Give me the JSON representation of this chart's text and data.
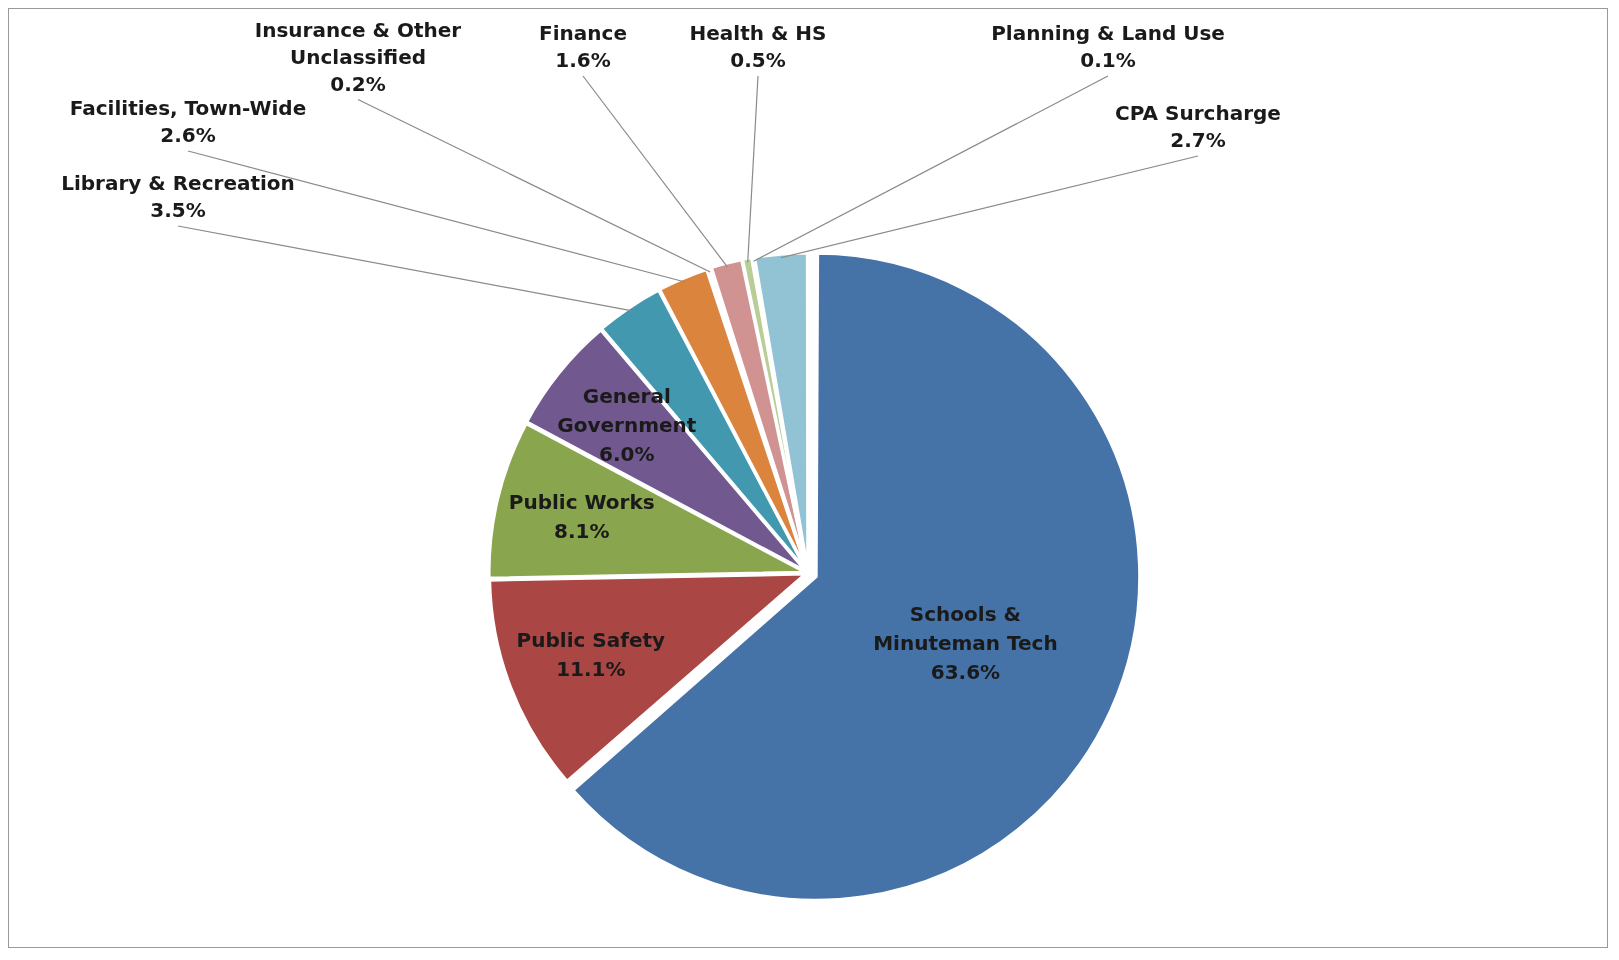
{
  "chart_data": {
    "type": "pie",
    "categories": [
      "Schools & Minuteman Tech",
      "Public Safety",
      "Public Works",
      "General Government",
      "Library & Recreation",
      "Facilities, Town-Wide",
      "Insurance & Other Unclassified",
      "Finance",
      "Health & HS",
      "Planning & Land Use",
      "CPA Surcharge"
    ],
    "values": [
      63.6,
      11.1,
      8.1,
      6.0,
      3.5,
      2.6,
      0.2,
      1.6,
      0.5,
      0.1,
      2.7
    ],
    "colors": [
      "#4572a7",
      "#aa4643",
      "#89a54e",
      "#71588f",
      "#4198af",
      "#db843d",
      "#93a9cf",
      "#d19392",
      "#b9cd96",
      "#a99bbd",
      "#92c3d4"
    ],
    "value_labels": [
      "63.6%",
      "11.1%",
      "8.1%",
      "6.0%",
      "3.5%",
      "2.6%",
      "0.2%",
      "1.6%",
      "0.5%",
      "0.1%",
      "2.7%"
    ]
  }
}
